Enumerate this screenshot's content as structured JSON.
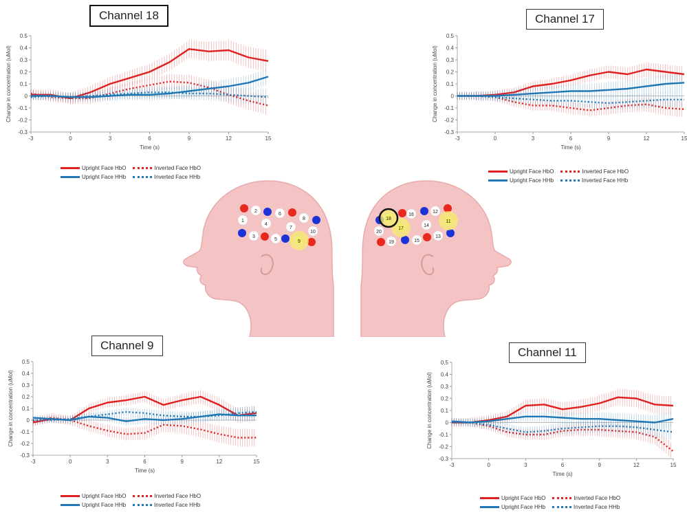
{
  "legend": {
    "upright_hbo": "Upright Face HbO",
    "inverted_hbo": "Inverted Face HbO",
    "upright_hhb": "Upright Face HHb",
    "inverted_hhb": "Inverted Face HHb"
  },
  "colors": {
    "hbo": "#e02020",
    "hhb": "#1f77b4",
    "head": "#f4c4c4",
    "head_edge": "#e9aeae",
    "highlight": "#f7ec6a"
  },
  "chart_data": [
    {
      "type": "line",
      "title": "Channel 18",
      "xlabel": "Time (s)",
      "ylabel": "Change in concentration (uMol)",
      "xlim": [
        -3,
        15
      ],
      "ylim": [
        -0.3,
        0.5
      ],
      "xticks": [
        -3,
        0,
        3,
        6,
        9,
        12,
        15
      ],
      "yticks": [
        0.5,
        0.4,
        0.3,
        0.2,
        0.1,
        0,
        -0.1,
        -0.2,
        -0.3
      ],
      "x": [
        -3,
        -1.5,
        0,
        1.5,
        3,
        4.5,
        6,
        7.5,
        9,
        10.5,
        12,
        13.5,
        15
      ],
      "series": [
        {
          "name": "Upright Face HbO",
          "values": [
            0.01,
            0.01,
            -0.02,
            0.03,
            0.1,
            0.15,
            0.2,
            0.28,
            0.39,
            0.37,
            0.38,
            0.32,
            0.29
          ],
          "error": 0.07
        },
        {
          "name": "Inverted Face HbO",
          "values": [
            0.02,
            -0.01,
            -0.02,
            -0.02,
            0.02,
            0.06,
            0.09,
            0.12,
            0.11,
            0.07,
            0.01,
            -0.04,
            -0.08
          ],
          "error": 0.06
        },
        {
          "name": "Upright Face HHb",
          "values": [
            0.0,
            0.0,
            -0.01,
            -0.01,
            0.0,
            0.01,
            0.01,
            0.02,
            0.04,
            0.06,
            0.08,
            0.11,
            0.16
          ],
          "error": 0.05
        },
        {
          "name": "Inverted Face HHb",
          "values": [
            -0.01,
            0.0,
            -0.01,
            0.0,
            0.01,
            0.02,
            0.03,
            0.03,
            0.02,
            0.02,
            0.01,
            0.0,
            -0.01
          ],
          "error": 0.05
        }
      ]
    },
    {
      "type": "line",
      "title": "Channel 17",
      "xlabel": "Time (s)",
      "ylabel": "Change in concentration (uMol)",
      "xlim": [
        -3,
        15
      ],
      "ylim": [
        -0.3,
        0.5
      ],
      "xticks": [
        -3,
        0,
        3,
        6,
        9,
        12,
        15
      ],
      "yticks": [
        0.5,
        0.4,
        0.3,
        0.2,
        0.1,
        0,
        -0.1,
        -0.2,
        -0.3
      ],
      "x": [
        -3,
        -1.5,
        0,
        1.5,
        3,
        4.5,
        6,
        7.5,
        9,
        10.5,
        12,
        13.5,
        15
      ],
      "series": [
        {
          "name": "Upright Face HbO",
          "values": [
            0.0,
            0.0,
            0.01,
            0.03,
            0.08,
            0.1,
            0.13,
            0.17,
            0.2,
            0.18,
            0.22,
            0.2,
            0.18
          ],
          "error": 0.05
        },
        {
          "name": "Inverted Face HbO",
          "values": [
            0.0,
            0.0,
            -0.01,
            -0.05,
            -0.08,
            -0.08,
            -0.1,
            -0.12,
            -0.1,
            -0.08,
            -0.07,
            -0.1,
            -0.11
          ],
          "error": 0.05
        },
        {
          "name": "Upright Face HHb",
          "values": [
            0.0,
            0.0,
            0.0,
            0.01,
            0.02,
            0.03,
            0.04,
            0.04,
            0.05,
            0.06,
            0.08,
            0.1,
            0.11
          ],
          "error": 0.06
        },
        {
          "name": "Inverted Face HHb",
          "values": [
            0.0,
            0.0,
            -0.01,
            -0.02,
            -0.03,
            -0.04,
            -0.04,
            -0.05,
            -0.06,
            -0.05,
            -0.04,
            -0.03,
            -0.03
          ],
          "error": 0.05
        }
      ]
    },
    {
      "type": "line",
      "title": "Channel 9",
      "xlabel": "Time (s)",
      "ylabel": "Change in concentration (uMol)",
      "xlim": [
        -3,
        15
      ],
      "ylim": [
        -0.3,
        0.5
      ],
      "xticks": [
        -3,
        0,
        3,
        6,
        9,
        12,
        15
      ],
      "yticks": [
        0.5,
        0.4,
        0.3,
        0.2,
        0.1,
        0,
        -0.1,
        -0.2,
        -0.3
      ],
      "x": [
        -3,
        -1.5,
        0,
        1.5,
        3,
        4.5,
        6,
        7.5,
        9,
        10.5,
        12,
        13.5,
        15
      ],
      "series": [
        {
          "name": "Upright Face HbO",
          "values": [
            -0.02,
            0.01,
            0.0,
            0.1,
            0.15,
            0.17,
            0.2,
            0.13,
            0.17,
            0.2,
            0.13,
            0.04,
            0.06
          ],
          "error": 0.05
        },
        {
          "name": "Inverted Face HbO",
          "values": [
            -0.01,
            0.02,
            0.0,
            -0.05,
            -0.09,
            -0.12,
            -0.11,
            -0.04,
            -0.05,
            -0.08,
            -0.12,
            -0.15,
            -0.15
          ],
          "error": 0.06
        },
        {
          "name": "Upright Face HHb",
          "values": [
            0.02,
            0.01,
            0.0,
            0.03,
            0.02,
            -0.01,
            0.01,
            0.0,
            0.01,
            0.03,
            0.05,
            0.04,
            0.04
          ],
          "error": 0.04
        },
        {
          "name": "Inverted Face HHb",
          "values": [
            0.0,
            0.0,
            0.01,
            0.03,
            0.05,
            0.07,
            0.06,
            0.04,
            0.03,
            0.03,
            0.04,
            0.06,
            0.07
          ],
          "error": 0.04
        }
      ]
    },
    {
      "type": "line",
      "title": "Channel 11",
      "xlabel": "Time (s)",
      "ylabel": "Change in concentration (uMol)",
      "xlim": [
        -3,
        15
      ],
      "ylim": [
        -0.3,
        0.5
      ],
      "xticks": [
        -3,
        0,
        3,
        6,
        9,
        12,
        15
      ],
      "yticks": [
        0.5,
        0.4,
        0.3,
        0.2,
        0.1,
        0,
        -0.1,
        -0.2,
        -0.3
      ],
      "x": [
        -3,
        -1.5,
        0,
        1.5,
        3,
        4.5,
        6,
        7.5,
        9,
        10.5,
        12,
        13.5,
        15
      ],
      "series": [
        {
          "name": "Upright Face HbO",
          "values": [
            0.0,
            0.0,
            0.02,
            0.05,
            0.14,
            0.15,
            0.11,
            0.13,
            0.16,
            0.21,
            0.2,
            0.15,
            0.14
          ],
          "error": 0.06
        },
        {
          "name": "Inverted Face HbO",
          "values": [
            0.0,
            0.0,
            -0.03,
            -0.08,
            -0.1,
            -0.1,
            -0.07,
            -0.06,
            -0.06,
            -0.07,
            -0.08,
            -0.12,
            -0.24
          ],
          "error": 0.05
        },
        {
          "name": "Upright Face HHb",
          "values": [
            0.01,
            0.0,
            0.01,
            0.03,
            0.05,
            0.05,
            0.04,
            0.03,
            0.03,
            0.02,
            0.01,
            0.0,
            0.03
          ],
          "error": 0.05
        },
        {
          "name": "Inverted Face HHb",
          "values": [
            0.0,
            0.0,
            -0.02,
            -0.05,
            -0.08,
            -0.07,
            -0.05,
            -0.04,
            -0.03,
            -0.03,
            -0.04,
            -0.06,
            -0.08
          ],
          "error": 0.05
        }
      ]
    }
  ],
  "head_map": {
    "left_channels": [
      {
        "label": "1",
        "highlight": false
      },
      {
        "label": "2",
        "highlight": false
      },
      {
        "label": "3",
        "highlight": false
      },
      {
        "label": "4",
        "highlight": false
      },
      {
        "label": "5",
        "highlight": false
      },
      {
        "label": "6",
        "highlight": false
      },
      {
        "label": "7",
        "highlight": false
      },
      {
        "label": "8",
        "highlight": false
      },
      {
        "label": "9",
        "highlight": true
      },
      {
        "label": "10",
        "highlight": false
      }
    ],
    "right_channels": [
      {
        "label": "11",
        "highlight": true
      },
      {
        "label": "12",
        "highlight": false
      },
      {
        "label": "13",
        "highlight": false
      },
      {
        "label": "14",
        "highlight": false
      },
      {
        "label": "15",
        "highlight": false
      },
      {
        "label": "16",
        "highlight": false
      },
      {
        "label": "17",
        "highlight": true
      },
      {
        "label": "18",
        "highlight": true,
        "circled": true
      },
      {
        "label": "19",
        "highlight": false
      },
      {
        "label": "20",
        "highlight": false
      }
    ]
  }
}
